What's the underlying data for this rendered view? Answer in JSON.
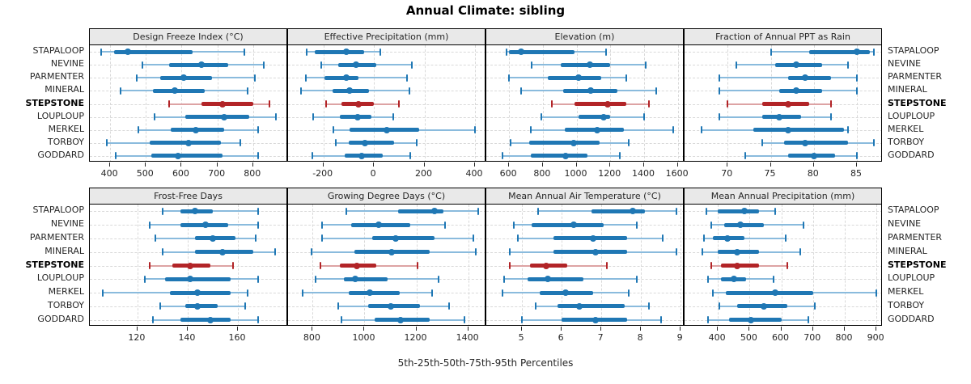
{
  "title": "Annual Climate: sibling",
  "caption": "5th-25th-50th-75th-95th Percentiles",
  "colors": {
    "normal": "#1f77b4",
    "normal_light": "#8abbdd",
    "highlight": "#b22427",
    "highlight_light": "#dda3a4",
    "header_bg": "#e9e9e9",
    "gridline": "#d9d9d9",
    "panel_border": "#000000"
  },
  "chart_data": {
    "type": "percentile_dot_plot",
    "percentiles": [
      5,
      25,
      50,
      75,
      95
    ],
    "stations": [
      "STAPALOOP",
      "NEVINE",
      "PARMENTER",
      "MINERAL",
      "STEPSTONE",
      "LOUPLOUP",
      "MERKEL",
      "TORBOY",
      "GODDARD"
    ],
    "highlight_station": "STEPSTONE",
    "legend_note": "5th-25th-50th-75th-95th Percentiles",
    "panels": [
      {
        "title": "Design Freeze Index (°C)",
        "grid_row": 0,
        "grid_col": 0,
        "axis_min": 343,
        "axis_max": 898,
        "ticks": [
          400,
          500,
          600,
          700,
          800
        ],
        "rows": [
          {
            "station": "STAPALOOP",
            "p": [
              375,
              410,
              450,
              630,
              775
            ]
          },
          {
            "station": "NEVINE",
            "p": [
              490,
              565,
              655,
              730,
              830
            ]
          },
          {
            "station": "PARMENTER",
            "p": [
              475,
              540,
              605,
              685,
              805
            ]
          },
          {
            "station": "MINERAL",
            "p": [
              430,
              520,
              580,
              665,
              785
            ]
          },
          {
            "station": "STEPSTONE",
            "p": [
              565,
              655,
              715,
              800,
              845
            ]
          },
          {
            "station": "LOUPLOUP",
            "p": [
              525,
              610,
              720,
              790,
              865
            ]
          },
          {
            "station": "MERKEL",
            "p": [
              480,
              570,
              640,
              720,
              815
            ]
          },
          {
            "station": "TORBOY",
            "p": [
              390,
              510,
              620,
              710,
              765
            ]
          },
          {
            "station": "GODDARD",
            "p": [
              415,
              515,
              590,
              715,
              815
            ]
          }
        ]
      },
      {
        "title": "Effective Precipitation (mm)",
        "grid_row": 0,
        "grid_col": 1,
        "axis_min": -340,
        "axis_max": 445,
        "ticks": [
          -200,
          0,
          200,
          400
        ],
        "rows": [
          {
            "station": "STAPALOOP",
            "p": [
              -265,
              -235,
              -110,
              -40,
              25
            ]
          },
          {
            "station": "NEVINE",
            "p": [
              -210,
              -140,
              -70,
              10,
              150
            ]
          },
          {
            "station": "PARMENTER",
            "p": [
              -270,
              -195,
              -110,
              -60,
              130
            ]
          },
          {
            "station": "MINERAL",
            "p": [
              -290,
              -165,
              -95,
              -20,
              140
            ]
          },
          {
            "station": "STEPSTONE",
            "p": [
              -190,
              -130,
              -60,
              0,
              100
            ]
          },
          {
            "station": "LOUPLOUP",
            "p": [
              -240,
              -135,
              -65,
              -10,
              75
            ]
          },
          {
            "station": "MERKEL",
            "p": [
              -160,
              -95,
              50,
              180,
              400
            ]
          },
          {
            "station": "TORBOY",
            "p": [
              -150,
              -100,
              -35,
              80,
              170
            ]
          },
          {
            "station": "GODDARD",
            "p": [
              -245,
              -115,
              -50,
              35,
              145
            ]
          }
        ]
      },
      {
        "title": "Elevation (m)",
        "grid_row": 0,
        "grid_col": 2,
        "axis_min": 465,
        "axis_max": 1640,
        "ticks": [
          600,
          800,
          1000,
          1200,
          1400,
          1600
        ],
        "rows": [
          {
            "station": "STAPALOOP",
            "p": [
              585,
              600,
              672,
              990,
              1175
            ]
          },
          {
            "station": "NEVINE",
            "p": [
              735,
              905,
              1080,
              1200,
              1410
            ]
          },
          {
            "station": "PARMENTER",
            "p": [
              600,
              830,
              1010,
              1145,
              1295
            ]
          },
          {
            "station": "MINERAL",
            "p": [
              670,
              920,
              1085,
              1240,
              1470
            ]
          },
          {
            "station": "STEPSTONE",
            "p": [
              855,
              990,
              1185,
              1295,
              1430
            ]
          },
          {
            "station": "LOUPLOUP",
            "p": [
              790,
              1010,
              1160,
              1200,
              1400
            ]
          },
          {
            "station": "MERKEL",
            "p": [
              730,
              930,
              1120,
              1280,
              1575
            ]
          },
          {
            "station": "TORBOY",
            "p": [
              610,
              720,
              985,
              1135,
              1310
            ]
          },
          {
            "station": "GODDARD",
            "p": [
              560,
              730,
              935,
              1065,
              1255
            ]
          }
        ]
      },
      {
        "title": "Fraction of Annual PPT as Rain",
        "grid_row": 0,
        "grid_col": 3,
        "axis_min": 65,
        "axis_max": 88,
        "ticks": [
          70,
          75,
          80,
          85
        ],
        "rows": [
          {
            "station": "STAPALOOP",
            "p": [
              75,
              79.5,
              85,
              86.5,
              87
            ]
          },
          {
            "station": "NEVINE",
            "p": [
              71,
              75.5,
              78,
              81,
              84
            ]
          },
          {
            "station": "PARMENTER",
            "p": [
              69,
              77,
              79,
              82,
              85
            ]
          },
          {
            "station": "MINERAL",
            "p": [
              69,
              76,
              78,
              81,
              85
            ]
          },
          {
            "station": "STEPSTONE",
            "p": [
              70,
              74,
              77,
              79.5,
              82
            ]
          },
          {
            "station": "LOUPLOUP",
            "p": [
              69,
              74,
              76,
              78.5,
              82
            ]
          },
          {
            "station": "MERKEL",
            "p": [
              67,
              73,
              77,
              83.5,
              84
            ]
          },
          {
            "station": "TORBOY",
            "p": [
              74,
              76.5,
              79,
              84,
              87
            ]
          },
          {
            "station": "GODDARD",
            "p": [
              72,
              77,
              80,
              82.5,
              85
            ]
          }
        ]
      },
      {
        "title": "Frost-Free Days",
        "grid_row": 1,
        "grid_col": 0,
        "axis_min": 101,
        "axis_max": 180,
        "ticks": [
          120,
          140,
          160
        ],
        "rows": [
          {
            "station": "STAPALOOP",
            "p": [
              130,
              137,
              143,
              150,
              168
            ]
          },
          {
            "station": "NEVINE",
            "p": [
              125,
              137,
              147,
              156,
              168
            ]
          },
          {
            "station": "PARMENTER",
            "p": [
              127,
              143,
              150,
              159,
              167
            ]
          },
          {
            "station": "MINERAL",
            "p": [
              130,
              143,
              154,
              166,
              175
            ]
          },
          {
            "station": "STEPSTONE",
            "p": [
              125,
              134,
              141,
              149,
              158
            ]
          },
          {
            "station": "LOUPLOUP",
            "p": [
              123,
              131,
              141,
              157,
              168
            ]
          },
          {
            "station": "MERKEL",
            "p": [
              106,
              133,
              144,
              157,
              164
            ]
          },
          {
            "station": "TORBOY",
            "p": [
              129,
              139,
              144,
              152,
              163
            ]
          },
          {
            "station": "GODDARD",
            "p": [
              126,
              137,
              149,
              157,
              168
            ]
          }
        ]
      },
      {
        "title": "Growing Degree Days (°C)",
        "grid_row": 1,
        "grid_col": 1,
        "axis_min": 705,
        "axis_max": 1470,
        "ticks": [
          800,
          1000,
          1200,
          1400
        ],
        "rows": [
          {
            "station": "STAPALOOP",
            "p": [
              930,
              1130,
              1270,
              1305,
              1440
            ]
          },
          {
            "station": "NEVINE",
            "p": [
              835,
              950,
              1055,
              1175,
              1310
            ]
          },
          {
            "station": "PARMENTER",
            "p": [
              835,
              1030,
              1120,
              1270,
              1420
            ]
          },
          {
            "station": "MINERAL",
            "p": [
              795,
              960,
              1105,
              1250,
              1430
            ]
          },
          {
            "station": "STEPSTONE",
            "p": [
              830,
              905,
              970,
              1045,
              1205
            ]
          },
          {
            "station": "LOUPLOUP",
            "p": [
              810,
              920,
              965,
              1090,
              1285
            ]
          },
          {
            "station": "MERKEL",
            "p": [
              760,
              940,
              1020,
              1135,
              1260
            ]
          },
          {
            "station": "TORBOY",
            "p": [
              900,
              1015,
              1100,
              1215,
              1325
            ]
          },
          {
            "station": "GODDARD",
            "p": [
              910,
              1040,
              1140,
              1250,
              1385
            ]
          }
        ]
      },
      {
        "title": "Mean Annual Air Temperature (°C)",
        "grid_row": 1,
        "grid_col": 2,
        "axis_min": 4.1,
        "axis_max": 9.1,
        "ticks": [
          5,
          6,
          7,
          8,
          9
        ],
        "rows": [
          {
            "station": "STAPALOOP",
            "p": [
              5.4,
              6.75,
              7.8,
              8.1,
              8.9
            ]
          },
          {
            "station": "NEVINE",
            "p": [
              4.8,
              5.25,
              6.3,
              7.05,
              7.9
            ]
          },
          {
            "station": "PARMENTER",
            "p": [
              4.9,
              5.8,
              6.8,
              7.65,
              8.55
            ]
          },
          {
            "station": "MINERAL",
            "p": [
              4.7,
              5.8,
              6.85,
              7.65,
              8.9
            ]
          },
          {
            "station": "STEPSTONE",
            "p": [
              4.7,
              5.2,
              5.6,
              6.15,
              7.15
            ]
          },
          {
            "station": "LOUPLOUP",
            "p": [
              4.55,
              5.15,
              5.65,
              6.55,
              7.9
            ]
          },
          {
            "station": "MERKEL",
            "p": [
              4.5,
              5.45,
              6.1,
              6.8,
              7.7
            ]
          },
          {
            "station": "TORBOY",
            "p": [
              5.35,
              5.9,
              6.45,
              7.6,
              8.2
            ]
          },
          {
            "station": "GODDARD",
            "p": [
              5.0,
              6.0,
              6.85,
              7.65,
              8.5
            ]
          }
        ]
      },
      {
        "title": "Mean Annual Precipitation (mm)",
        "grid_row": 1,
        "grid_col": 3,
        "axis_min": 295,
        "axis_max": 920,
        "ticks": [
          400,
          500,
          600,
          700,
          800,
          900
        ],
        "rows": [
          {
            "station": "STAPALOOP",
            "p": [
              365,
              400,
              485,
              530,
              580
            ]
          },
          {
            "station": "NEVINE",
            "p": [
              380,
              420,
              470,
              545,
              670
            ]
          },
          {
            "station": "PARMENTER",
            "p": [
              355,
              385,
              430,
              485,
              615
            ]
          },
          {
            "station": "MINERAL",
            "p": [
              350,
              400,
              460,
              530,
              660
            ]
          },
          {
            "station": "STEPSTONE",
            "p": [
              380,
              410,
              460,
              530,
              620
            ]
          },
          {
            "station": "LOUPLOUP",
            "p": [
              370,
              410,
              450,
              490,
              575
            ]
          },
          {
            "station": "MERKEL",
            "p": [
              385,
              425,
              580,
              700,
              900
            ]
          },
          {
            "station": "TORBOY",
            "p": [
              405,
              460,
              545,
              620,
              705
            ]
          },
          {
            "station": "GODDARD",
            "p": [
              370,
              435,
              505,
              600,
              685
            ]
          }
        ]
      }
    ]
  }
}
